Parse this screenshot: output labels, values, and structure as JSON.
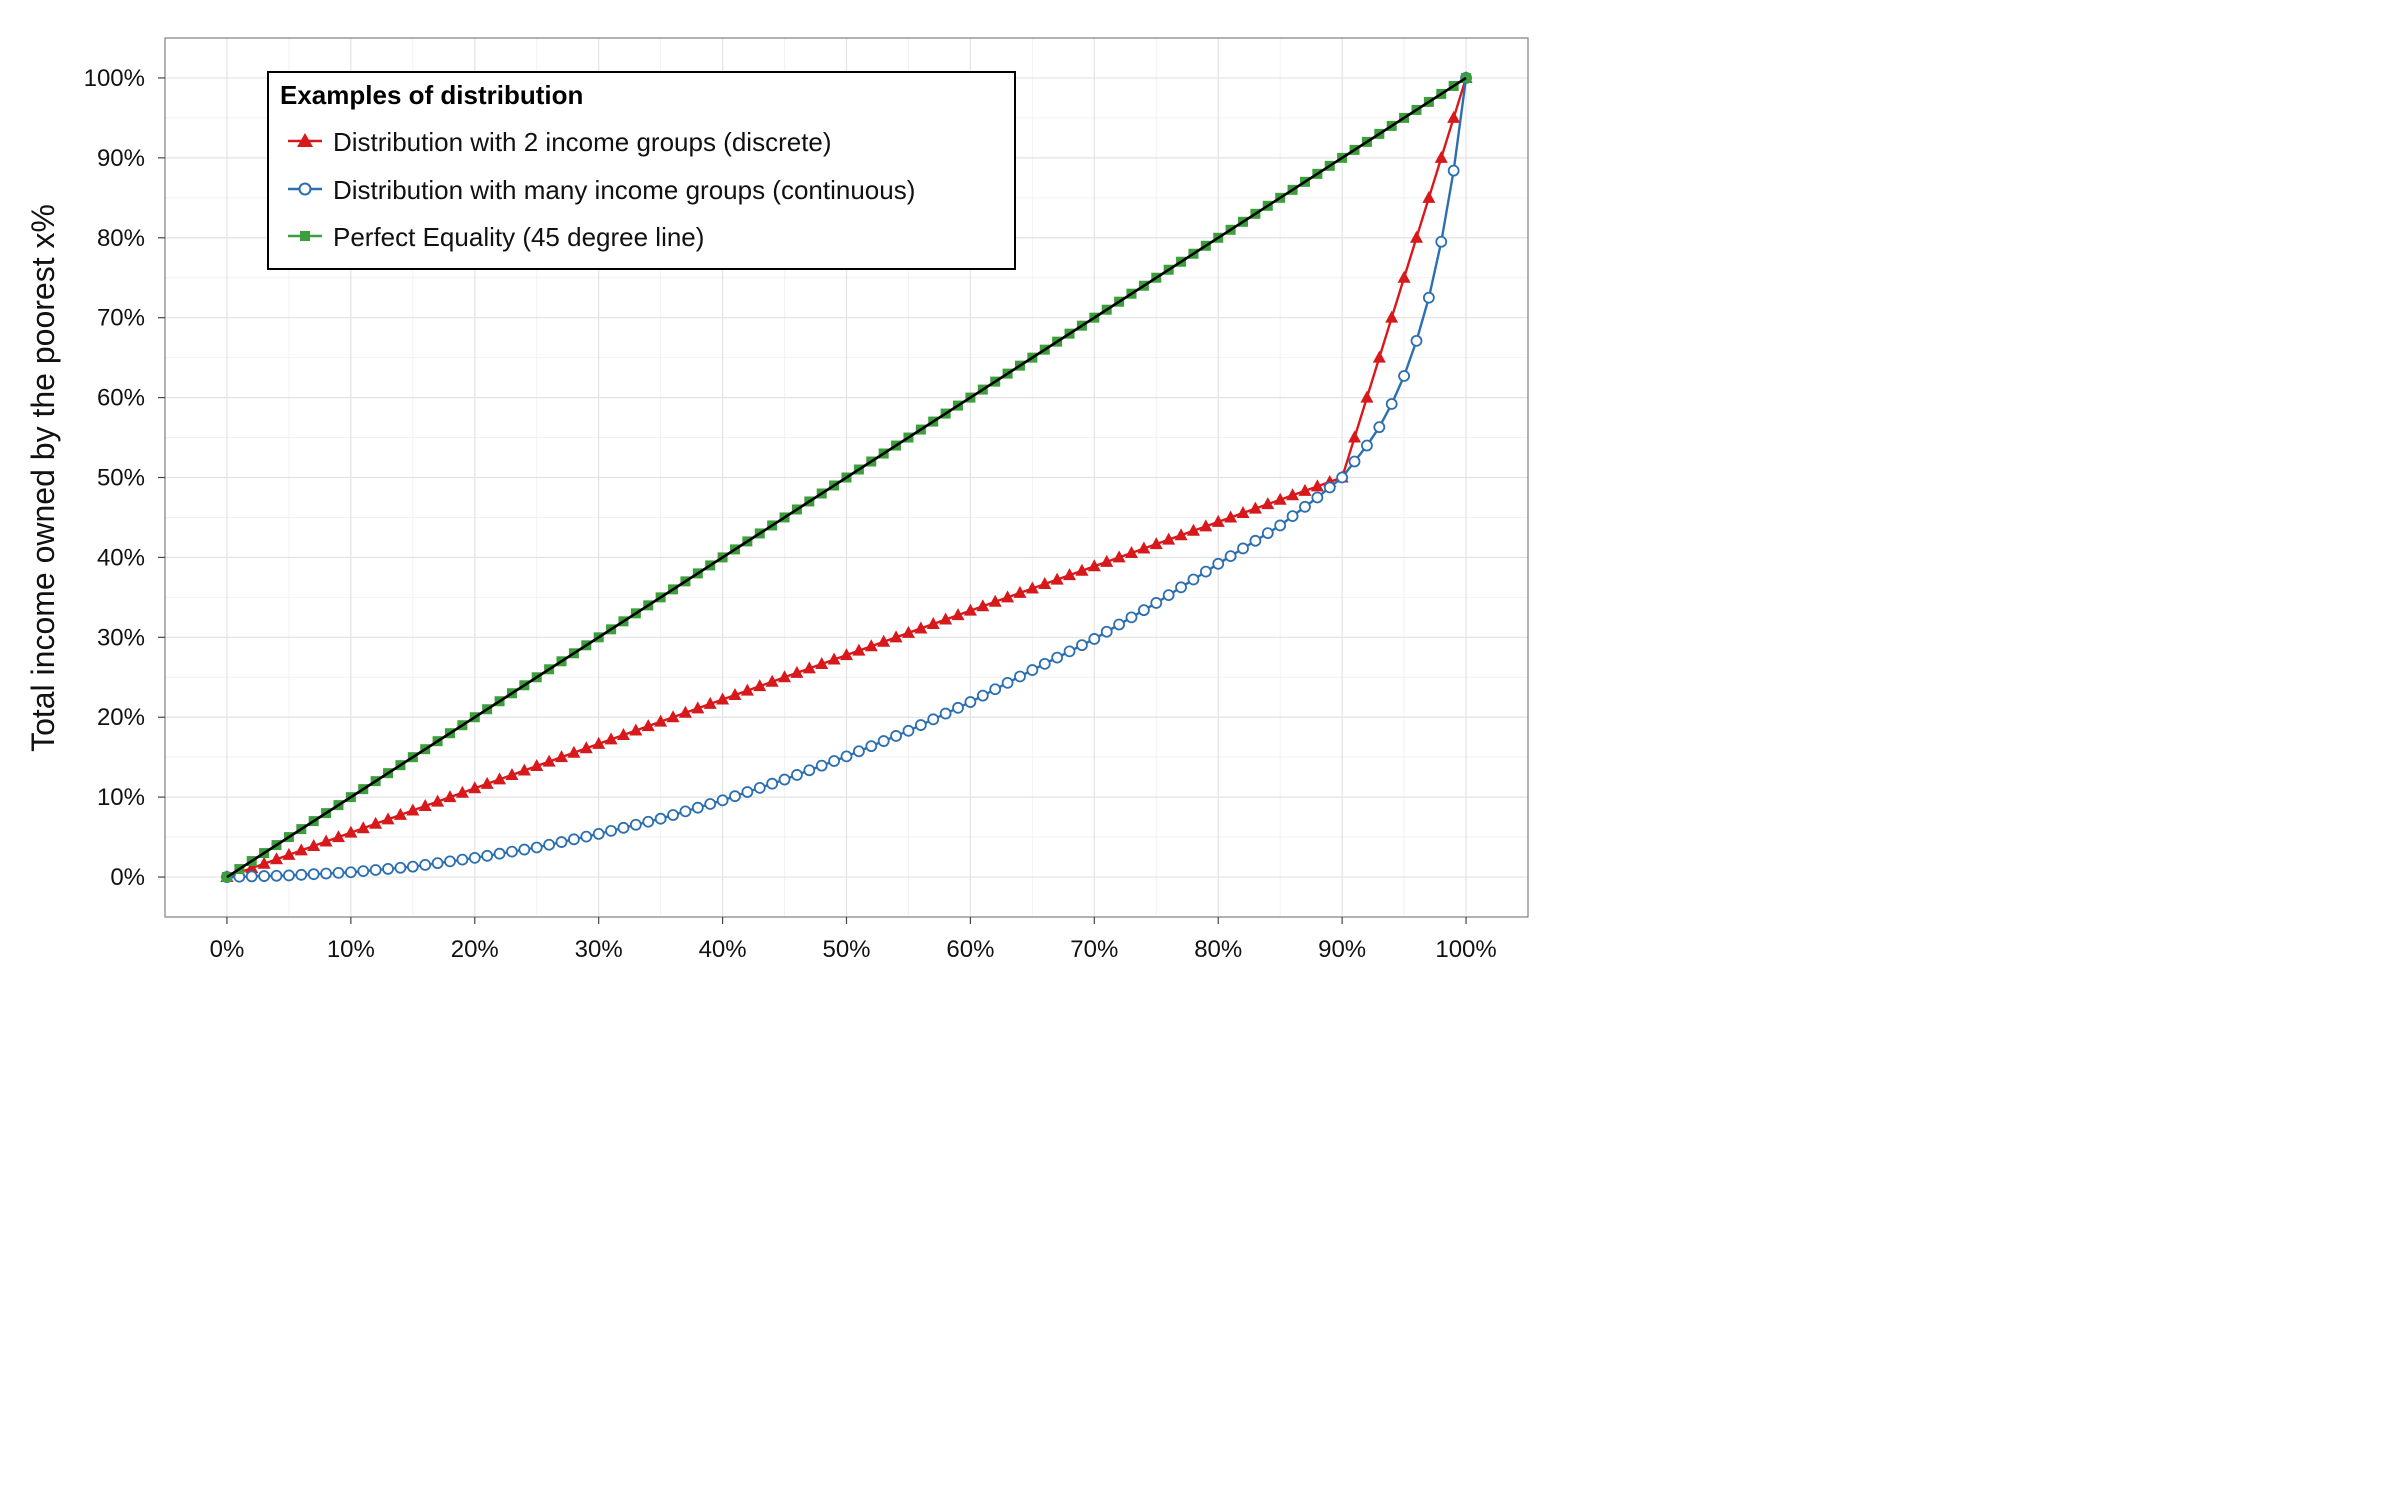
{
  "chart_data": {
    "type": "line",
    "xlabel": "",
    "ylabel": "Total income owned by the poorest x%",
    "xlim": [
      -0.05,
      1.05
    ],
    "ylim": [
      -0.05,
      1.05
    ],
    "x_ticks": [
      0,
      0.1,
      0.2,
      0.3,
      0.4,
      0.5,
      0.6,
      0.7,
      0.8,
      0.9,
      1.0
    ],
    "x_tick_labels": [
      "0%",
      "10%",
      "20%",
      "30%",
      "40%",
      "50%",
      "60%",
      "70%",
      "80%",
      "90%",
      "100%"
    ],
    "y_ticks": [
      0,
      0.1,
      0.2,
      0.3,
      0.4,
      0.5,
      0.6,
      0.7,
      0.8,
      0.9,
      1.0
    ],
    "y_tick_labels": [
      "0%",
      "10%",
      "20%",
      "30%",
      "40%",
      "50%",
      "60%",
      "70%",
      "80%",
      "90%",
      "100%"
    ],
    "grid": true,
    "legend": {
      "title": "Examples of distribution",
      "placement": "top-left"
    },
    "x_step": 0.01,
    "series": [
      {
        "name": "Distribution with 2 income groups (discrete)",
        "color": "#d7191c",
        "marker": "triangle",
        "points": [
          [
            0,
            0
          ],
          [
            0.9,
            0.5
          ],
          [
            1.0,
            1.0
          ]
        ]
      },
      {
        "name": "Distribution with many income groups (continuous)",
        "color": "#2c6fb0",
        "marker": "circle",
        "points": [
          [
            0,
            0
          ],
          [
            0.05,
            0.002
          ],
          [
            0.1,
            0.006
          ],
          [
            0.15,
            0.013
          ],
          [
            0.2,
            0.024
          ],
          [
            0.25,
            0.037
          ],
          [
            0.3,
            0.054
          ],
          [
            0.35,
            0.073
          ],
          [
            0.4,
            0.096
          ],
          [
            0.45,
            0.122
          ],
          [
            0.5,
            0.151
          ],
          [
            0.55,
            0.183
          ],
          [
            0.6,
            0.219
          ],
          [
            0.65,
            0.259
          ],
          [
            0.7,
            0.298
          ],
          [
            0.75,
            0.343
          ],
          [
            0.8,
            0.392
          ],
          [
            0.85,
            0.44
          ],
          [
            0.88,
            0.475
          ],
          [
            0.9,
            0.5
          ],
          [
            0.91,
            0.52
          ],
          [
            0.92,
            0.54
          ],
          [
            0.93,
            0.563
          ],
          [
            0.94,
            0.592
          ],
          [
            0.95,
            0.627
          ],
          [
            0.96,
            0.671
          ],
          [
            0.97,
            0.725
          ],
          [
            0.98,
            0.795
          ],
          [
            0.99,
            0.884
          ],
          [
            1.0,
            1.0
          ]
        ]
      },
      {
        "name": "Perfect Equality (45 degree line)",
        "color": "#3c9f3c",
        "marker": "square",
        "points": [
          [
            0,
            0
          ],
          [
            1.0,
            1.0
          ]
        ]
      }
    ]
  }
}
